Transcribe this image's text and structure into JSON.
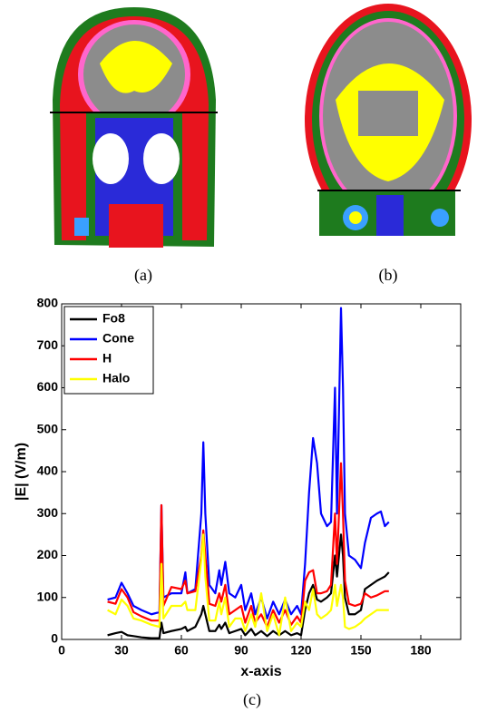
{
  "captions": [
    "(a)",
    "(b)",
    "(c)"
  ],
  "chart_data": {
    "type": "line",
    "xlabel": "x-axis",
    "ylabel": "|E| (V/m)",
    "xlim": [
      0,
      200
    ],
    "ylim": [
      0,
      800
    ],
    "xticks": [
      0,
      30,
      60,
      90,
      120,
      150,
      180
    ],
    "yticks": [
      0,
      100,
      200,
      300,
      400,
      500,
      600,
      700,
      800
    ],
    "legend": "upper-left",
    "x": [
      23,
      27,
      30,
      33,
      36,
      40,
      45,
      49,
      50,
      51,
      55,
      60,
      62,
      63,
      67,
      70,
      71,
      72,
      74,
      77,
      79,
      80,
      82,
      84,
      87,
      90,
      92,
      95,
      97,
      100,
      103,
      106,
      109,
      112,
      115,
      118,
      120,
      122,
      124,
      126,
      128,
      130,
      133,
      135,
      137,
      138,
      140,
      141,
      142,
      144,
      147,
      150,
      152,
      155,
      158,
      160,
      162,
      164
    ],
    "series": [
      {
        "name": "Fo8",
        "color": "#000000",
        "values": [
          10,
          15,
          18,
          10,
          8,
          5,
          3,
          3,
          40,
          15,
          20,
          25,
          30,
          20,
          30,
          60,
          80,
          60,
          20,
          20,
          35,
          25,
          40,
          15,
          20,
          25,
          10,
          25,
          10,
          20,
          8,
          20,
          10,
          20,
          10,
          15,
          10,
          70,
          110,
          130,
          95,
          90,
          100,
          110,
          200,
          150,
          250,
          200,
          100,
          60,
          60,
          70,
          120,
          130,
          140,
          145,
          150,
          160
        ]
      },
      {
        "name": "Cone",
        "color": "#0000ff",
        "values": [
          95,
          100,
          135,
          110,
          80,
          70,
          60,
          65,
          320,
          100,
          110,
          110,
          160,
          110,
          120,
          300,
          470,
          300,
          130,
          110,
          165,
          130,
          185,
          110,
          100,
          130,
          70,
          110,
          60,
          100,
          50,
          90,
          60,
          95,
          60,
          80,
          60,
          180,
          350,
          480,
          420,
          300,
          270,
          280,
          600,
          300,
          790,
          600,
          300,
          200,
          190,
          170,
          230,
          290,
          300,
          305,
          270,
          280
        ]
      },
      {
        "name": "H",
        "color": "#ff0000",
        "values": [
          90,
          85,
          120,
          100,
          65,
          55,
          45,
          45,
          320,
          80,
          125,
          120,
          140,
          110,
          115,
          200,
          260,
          200,
          85,
          80,
          110,
          90,
          130,
          60,
          70,
          80,
          40,
          80,
          40,
          60,
          30,
          70,
          40,
          70,
          35,
          55,
          40,
          140,
          160,
          165,
          110,
          110,
          115,
          130,
          300,
          180,
          420,
          300,
          140,
          85,
          80,
          85,
          110,
          100,
          105,
          110,
          115,
          115
        ]
      },
      {
        "name": "Halo",
        "color": "#ffff00",
        "values": [
          70,
          60,
          95,
          80,
          50,
          45,
          35,
          30,
          180,
          50,
          80,
          80,
          90,
          70,
          70,
          190,
          250,
          150,
          45,
          45,
          90,
          60,
          100,
          30,
          50,
          50,
          20,
          60,
          30,
          110,
          20,
          60,
          10,
          100,
          20,
          40,
          30,
          90,
          70,
          120,
          60,
          50,
          60,
          70,
          130,
          80,
          130,
          100,
          30,
          25,
          30,
          40,
          50,
          60,
          70,
          70,
          70,
          70
        ]
      }
    ]
  }
}
